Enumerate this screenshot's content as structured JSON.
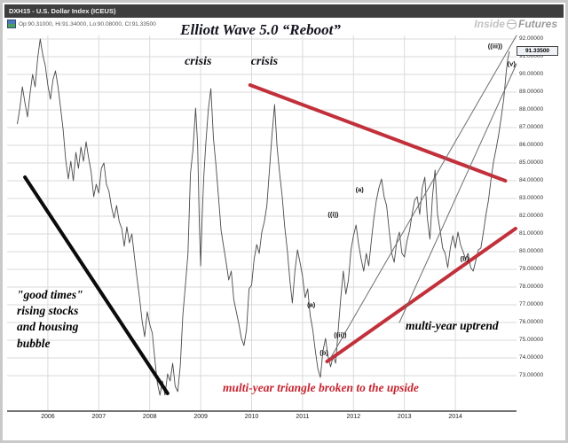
{
  "window": {
    "title": "DXH15 - U.S. Dollar Index (ICEUS)"
  },
  "header": {
    "ohlc": "Op:90.31000, Hi:91.34000, Lo:90.08000, Cl:91.33500"
  },
  "watermark": {
    "brand_left": "Inside",
    "brand_right": "Futures"
  },
  "chart_data": {
    "type": "line",
    "title": "Elliott Wave 5.0 “Reboot”",
    "x_range": [
      2005.2,
      2015.2
    ],
    "y_range": [
      71.0,
      92.2
    ],
    "x_ticks": [
      2006,
      2007,
      2008,
      2009,
      2010,
      2011,
      2012,
      2013,
      2014
    ],
    "y_ticks": [
      92,
      91,
      90,
      89,
      88,
      87,
      86,
      85,
      84,
      83,
      82,
      81,
      80,
      79,
      78,
      77,
      76,
      75,
      74,
      73
    ],
    "last_price": 91.335,
    "last_price_label": "91.33500",
    "colors": {
      "price": "#4a4a4a",
      "grid": "#dadada",
      "triangle_red": "#c2303b",
      "black_line": "#0b0b0b",
      "channel_gray": "#6e6e6e"
    },
    "series": {
      "name": "DXH15 weekly close",
      "points": [
        [
          2005.4,
          87.2
        ],
        [
          2005.45,
          88.1
        ],
        [
          2005.5,
          89.3
        ],
        [
          2005.55,
          88.4
        ],
        [
          2005.6,
          87.6
        ],
        [
          2005.65,
          88.9
        ],
        [
          2005.7,
          90.0
        ],
        [
          2005.75,
          89.3
        ],
        [
          2005.8,
          90.9
        ],
        [
          2005.85,
          92.0
        ],
        [
          2005.9,
          91.1
        ],
        [
          2005.95,
          90.5
        ],
        [
          2006.0,
          89.4
        ],
        [
          2006.05,
          88.6
        ],
        [
          2006.1,
          89.7
        ],
        [
          2006.15,
          90.2
        ],
        [
          2006.2,
          89.3
        ],
        [
          2006.25,
          88.1
        ],
        [
          2006.3,
          86.9
        ],
        [
          2006.35,
          85.2
        ],
        [
          2006.4,
          84.1
        ],
        [
          2006.45,
          85.1
        ],
        [
          2006.5,
          84.0
        ],
        [
          2006.55,
          85.6
        ],
        [
          2006.6,
          84.7
        ],
        [
          2006.65,
          85.9
        ],
        [
          2006.7,
          85.1
        ],
        [
          2006.75,
          86.2
        ],
        [
          2006.8,
          85.3
        ],
        [
          2006.85,
          84.5
        ],
        [
          2006.9,
          83.1
        ],
        [
          2006.95,
          83.8
        ],
        [
          2007.0,
          83.3
        ],
        [
          2007.05,
          84.7
        ],
        [
          2007.1,
          85.0
        ],
        [
          2007.15,
          83.8
        ],
        [
          2007.2,
          83.4
        ],
        [
          2007.25,
          82.5
        ],
        [
          2007.3,
          81.9
        ],
        [
          2007.35,
          82.6
        ],
        [
          2007.4,
          81.7
        ],
        [
          2007.45,
          81.3
        ],
        [
          2007.5,
          80.3
        ],
        [
          2007.55,
          81.4
        ],
        [
          2007.6,
          80.5
        ],
        [
          2007.65,
          81.0
        ],
        [
          2007.7,
          79.7
        ],
        [
          2007.75,
          78.5
        ],
        [
          2007.8,
          77.4
        ],
        [
          2007.85,
          76.1
        ],
        [
          2007.9,
          75.2
        ],
        [
          2007.95,
          76.6
        ],
        [
          2008.0,
          75.9
        ],
        [
          2008.05,
          75.4
        ],
        [
          2008.1,
          73.9
        ],
        [
          2008.15,
          72.6
        ],
        [
          2008.2,
          71.9
        ],
        [
          2008.25,
          72.7
        ],
        [
          2008.3,
          71.9
        ],
        [
          2008.35,
          73.1
        ],
        [
          2008.4,
          72.7
        ],
        [
          2008.45,
          73.7
        ],
        [
          2008.5,
          72.4
        ],
        [
          2008.55,
          72.1
        ],
        [
          2008.6,
          73.6
        ],
        [
          2008.65,
          76.4
        ],
        [
          2008.7,
          78.1
        ],
        [
          2008.75,
          79.9
        ],
        [
          2008.8,
          84.4
        ],
        [
          2008.85,
          85.8
        ],
        [
          2008.9,
          88.1
        ],
        [
          2008.94,
          86.0
        ],
        [
          2008.97,
          82.0
        ],
        [
          2009.0,
          79.2
        ],
        [
          2009.03,
          82.0
        ],
        [
          2009.06,
          84.2
        ],
        [
          2009.1,
          86.1
        ],
        [
          2009.15,
          88.0
        ],
        [
          2009.2,
          89.2
        ],
        [
          2009.25,
          86.4
        ],
        [
          2009.3,
          84.9
        ],
        [
          2009.35,
          83.1
        ],
        [
          2009.4,
          81.2
        ],
        [
          2009.45,
          80.3
        ],
        [
          2009.5,
          79.4
        ],
        [
          2009.55,
          78.4
        ],
        [
          2009.6,
          78.9
        ],
        [
          2009.65,
          77.3
        ],
        [
          2009.7,
          76.6
        ],
        [
          2009.75,
          75.9
        ],
        [
          2009.8,
          75.1
        ],
        [
          2009.85,
          74.7
        ],
        [
          2009.9,
          75.6
        ],
        [
          2009.95,
          77.9
        ],
        [
          2010.0,
          78.1
        ],
        [
          2010.05,
          79.6
        ],
        [
          2010.1,
          80.4
        ],
        [
          2010.15,
          79.9
        ],
        [
          2010.2,
          81.1
        ],
        [
          2010.25,
          81.7
        ],
        [
          2010.3,
          82.6
        ],
        [
          2010.35,
          84.6
        ],
        [
          2010.4,
          86.6
        ],
        [
          2010.45,
          88.3
        ],
        [
          2010.5,
          85.9
        ],
        [
          2010.55,
          84.4
        ],
        [
          2010.6,
          83.1
        ],
        [
          2010.65,
          81.4
        ],
        [
          2010.7,
          80.1
        ],
        [
          2010.75,
          78.4
        ],
        [
          2010.8,
          77.1
        ],
        [
          2010.85,
          78.9
        ],
        [
          2010.9,
          80.1
        ],
        [
          2010.95,
          79.4
        ],
        [
          2011.0,
          78.6
        ],
        [
          2011.05,
          77.4
        ],
        [
          2011.1,
          77.9
        ],
        [
          2011.15,
          76.4
        ],
        [
          2011.2,
          75.6
        ],
        [
          2011.25,
          74.4
        ],
        [
          2011.3,
          73.4
        ],
        [
          2011.35,
          72.9
        ],
        [
          2011.4,
          74.4
        ],
        [
          2011.45,
          75.1
        ],
        [
          2011.5,
          74.1
        ],
        [
          2011.55,
          73.5
        ],
        [
          2011.6,
          74.1
        ],
        [
          2011.65,
          73.7
        ],
        [
          2011.7,
          75.6
        ],
        [
          2011.75,
          77.4
        ],
        [
          2011.8,
          78.9
        ],
        [
          2011.85,
          77.6
        ],
        [
          2011.9,
          78.4
        ],
        [
          2011.95,
          80.1
        ],
        [
          2012.0,
          80.9
        ],
        [
          2012.05,
          81.5
        ],
        [
          2012.1,
          80.4
        ],
        [
          2012.15,
          79.6
        ],
        [
          2012.2,
          78.9
        ],
        [
          2012.25,
          79.9
        ],
        [
          2012.3,
          79.2
        ],
        [
          2012.35,
          80.6
        ],
        [
          2012.4,
          81.9
        ],
        [
          2012.45,
          82.9
        ],
        [
          2012.5,
          83.6
        ],
        [
          2012.55,
          84.1
        ],
        [
          2012.6,
          83.1
        ],
        [
          2012.65,
          82.6
        ],
        [
          2012.7,
          81.2
        ],
        [
          2012.75,
          79.9
        ],
        [
          2012.8,
          79.4
        ],
        [
          2012.85,
          80.6
        ],
        [
          2012.9,
          81.1
        ],
        [
          2012.95,
          79.9
        ],
        [
          2013.0,
          79.7
        ],
        [
          2013.05,
          80.6
        ],
        [
          2013.1,
          81.2
        ],
        [
          2013.15,
          82.1
        ],
        [
          2013.2,
          82.9
        ],
        [
          2013.25,
          83.1
        ],
        [
          2013.3,
          82.1
        ],
        [
          2013.35,
          83.6
        ],
        [
          2013.4,
          84.2
        ],
        [
          2013.45,
          81.9
        ],
        [
          2013.5,
          80.7
        ],
        [
          2013.55,
          83.1
        ],
        [
          2013.6,
          84.6
        ],
        [
          2013.65,
          82.1
        ],
        [
          2013.7,
          81.2
        ],
        [
          2013.75,
          80.2
        ],
        [
          2013.8,
          79.9
        ],
        [
          2013.85,
          79.1
        ],
        [
          2013.9,
          80.2
        ],
        [
          2013.95,
          80.9
        ],
        [
          2014.0,
          80.2
        ],
        [
          2014.05,
          81.1
        ],
        [
          2014.1,
          80.4
        ],
        [
          2014.15,
          80.0
        ],
        [
          2014.2,
          79.6
        ],
        [
          2014.25,
          79.9
        ],
        [
          2014.3,
          79.1
        ],
        [
          2014.35,
          78.9
        ],
        [
          2014.4,
          79.5
        ],
        [
          2014.45,
          80.1
        ],
        [
          2014.5,
          80.2
        ],
        [
          2014.55,
          81.1
        ],
        [
          2014.6,
          82.1
        ],
        [
          2014.65,
          82.9
        ],
        [
          2014.7,
          84.1
        ],
        [
          2014.75,
          85.1
        ],
        [
          2014.8,
          85.8
        ],
        [
          2014.85,
          86.6
        ],
        [
          2014.9,
          87.6
        ],
        [
          2014.95,
          88.6
        ],
        [
          2015.0,
          90.2
        ],
        [
          2015.03,
          90.9
        ],
        [
          2015.06,
          91.3
        ]
      ]
    },
    "trendlines": [
      {
        "name": "downtrend-2006-2008",
        "x1": 2005.55,
        "y1": 84.2,
        "x2": 2008.35,
        "y2": 72.0,
        "color": "#0b0b0b",
        "width": 4
      },
      {
        "name": "triangle-upper",
        "x1": 2009.97,
        "y1": 89.4,
        "x2": 2014.98,
        "y2": 84.0,
        "color": "#c2303b",
        "width": 4
      },
      {
        "name": "triangle-lower",
        "x1": 2011.48,
        "y1": 73.8,
        "x2": 2015.18,
        "y2": 81.3,
        "color": "#c2303b",
        "width": 4
      },
      {
        "name": "channel-upper",
        "x1": 2011.55,
        "y1": 74.0,
        "x2": 2015.2,
        "y2": 92.2,
        "color": "#6e6e6e",
        "width": 1
      },
      {
        "name": "channel-lower",
        "x1": 2012.9,
        "y1": 76.0,
        "x2": 2015.2,
        "y2": 90.6,
        "color": "#6e6e6e",
        "width": 1
      }
    ],
    "labels": [
      {
        "text": "crisis",
        "x": 2008.95,
        "y": 90.7,
        "cls": "crisis"
      },
      {
        "text": "crisis",
        "x": 2010.25,
        "y": 90.7,
        "cls": "crisis"
      },
      {
        "text": "(a)",
        "x": 2011.17,
        "y": 77.0,
        "cls": "wave"
      },
      {
        "text": "(b)",
        "x": 2011.42,
        "y": 74.3,
        "cls": "wave"
      },
      {
        "text": "((ii))",
        "x": 2011.74,
        "y": 75.3,
        "cls": "wave"
      },
      {
        "text": "((i))",
        "x": 2011.6,
        "y": 82.1,
        "cls": "wave"
      },
      {
        "text": "(a)",
        "x": 2012.12,
        "y": 83.5,
        "cls": "wave"
      },
      {
        "text": "(b)",
        "x": 2014.18,
        "y": 79.6,
        "cls": "wave"
      },
      {
        "text": "((iii))",
        "x": 2014.78,
        "y": 91.6,
        "cls": "wave"
      },
      {
        "text": "(v)",
        "x": 2015.1,
        "y": 90.6,
        "cls": "wave"
      }
    ],
    "annotations": {
      "good_times": "\"good times\"\nrising stocks\nand housing\nbubble",
      "uptrend": "multi-year uptrend",
      "breakout": "multi-year triangle broken to the upside"
    }
  }
}
